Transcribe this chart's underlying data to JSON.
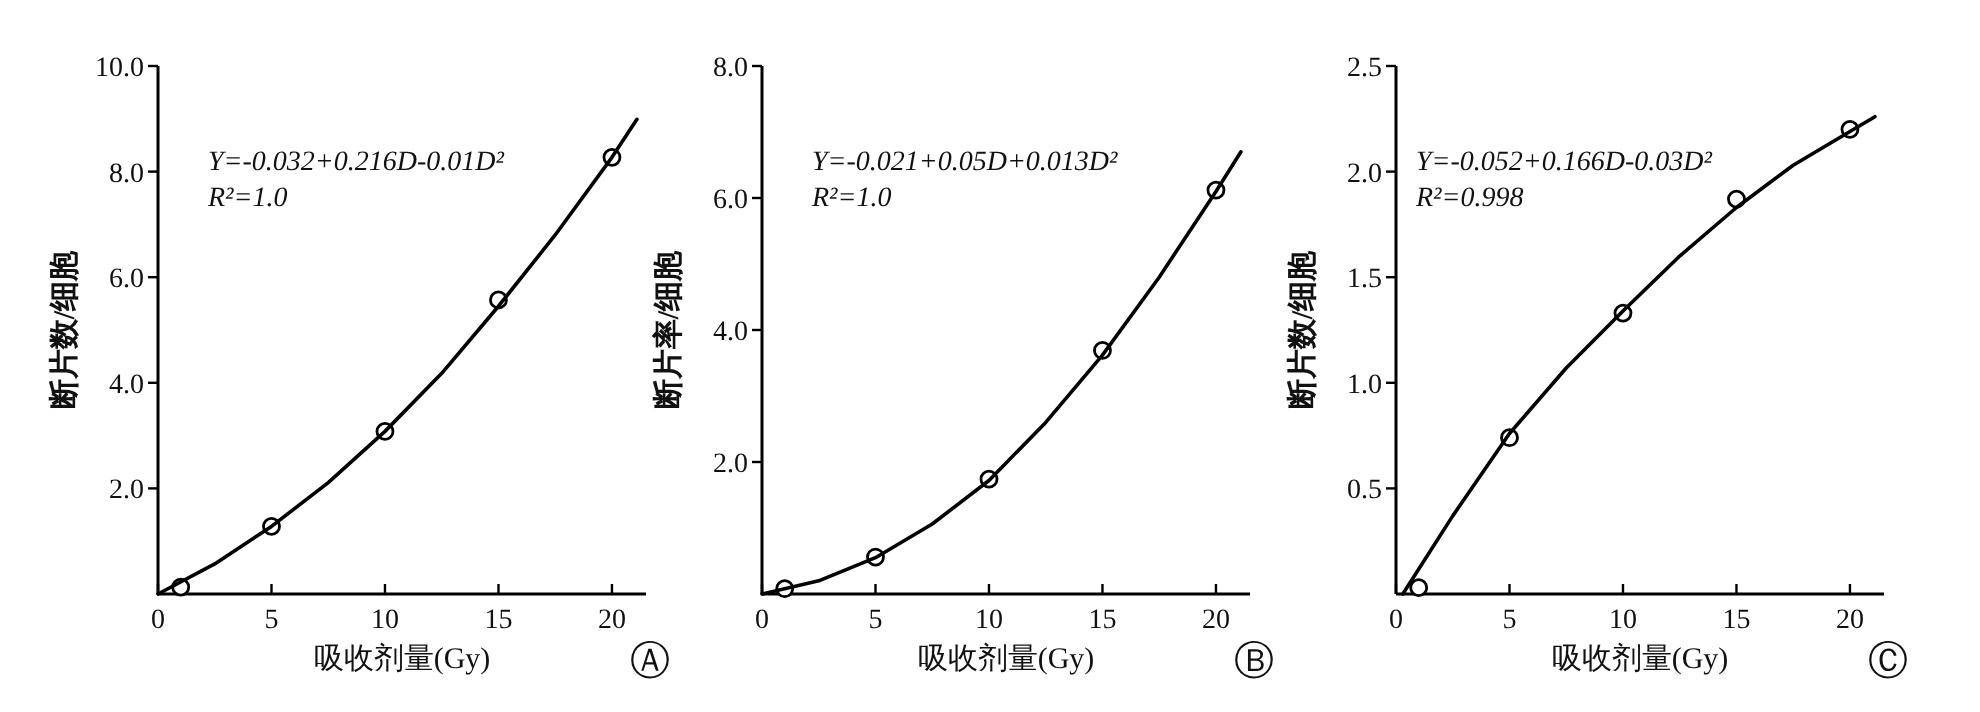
{
  "chart_data": [
    {
      "type": "line",
      "xlabel": "吸收剂量(Gy)",
      "ylabel": "断片数/细胞",
      "xlim": [
        0,
        21.5
      ],
      "xticks": [
        0,
        5,
        10,
        15,
        20
      ],
      "ylim": [
        0,
        10
      ],
      "yticks": [
        {
          "value": 2,
          "label": "2.0"
        },
        {
          "value": 4,
          "label": "4.0"
        },
        {
          "value": 6,
          "label": "6.0"
        },
        {
          "value": 8,
          "label": "8.0"
        },
        {
          "value": 10,
          "label": "10.0"
        }
      ],
      "annotations": [
        "Y=-0.032+0.216D-0.01D²",
        "R²=1.0",
        "Ⓐ"
      ],
      "series": [
        {
          "type": "scatter",
          "marker": "circle",
          "color": "#000000",
          "x": [
            1,
            5,
            10,
            15,
            20
          ],
          "values": [
            0.13,
            1.28,
            3.08,
            5.57,
            8.27
          ]
        },
        {
          "color": "#000000",
          "x": [
            0,
            2.5,
            5,
            7.5,
            10,
            12.5,
            15,
            17.5,
            20,
            21.1
          ],
          "values": [
            0,
            0.57,
            1.28,
            2.11,
            3.08,
            4.18,
            5.45,
            6.8,
            8.27,
            8.99
          ]
        }
      ]
    },
    {
      "type": "line",
      "xlabel": "吸收剂量(Gy)",
      "ylabel": "断片率/细胞",
      "xlim": [
        0,
        21.5
      ],
      "xticks": [
        0,
        5,
        10,
        15,
        20
      ],
      "ylim": [
        0,
        8
      ],
      "yticks": [
        {
          "value": 2,
          "label": "2.0"
        },
        {
          "value": 4,
          "label": "4.0"
        },
        {
          "value": 6,
          "label": "6.0"
        },
        {
          "value": 8,
          "label": "8.0"
        }
      ],
      "annotations": [
        "Y=-0.021+0.05D+0.013D²",
        "R²=1.0",
        "Ⓑ"
      ],
      "series": [
        {
          "type": "scatter",
          "marker": "circle",
          "color": "#000000",
          "x": [
            1,
            5,
            10,
            15,
            20
          ],
          "values": [
            0.08,
            0.56,
            1.74,
            3.69,
            6.12
          ]
        },
        {
          "color": "#000000",
          "x": [
            0,
            2.5,
            5,
            7.5,
            10,
            12.5,
            15,
            17.5,
            20,
            21.1
          ],
          "values": [
            0,
            0.2,
            0.55,
            1.06,
            1.72,
            2.6,
            3.62,
            4.8,
            6.1,
            6.7
          ]
        }
      ]
    },
    {
      "type": "line",
      "xlabel": "吸收剂量(Gy)",
      "ylabel": "断片数/细胞",
      "xlim": [
        0,
        21.5
      ],
      "xticks": [
        0,
        5,
        10,
        15,
        20
      ],
      "ylim": [
        0,
        2.5
      ],
      "yticks": [
        {
          "value": 0.5,
          "label": "0.5"
        },
        {
          "value": 1,
          "label": "1.0"
        },
        {
          "value": 1.5,
          "label": "1.5"
        },
        {
          "value": 2,
          "label": "2.0"
        },
        {
          "value": 2.5,
          "label": "2.5"
        }
      ],
      "annotations": [
        "Y=-0.052+0.166D-0.03D²",
        "R²=0.998",
        "Ⓒ"
      ],
      "series": [
        {
          "type": "scatter",
          "marker": "circle",
          "color": "#000000",
          "x": [
            1,
            5,
            10,
            15,
            20
          ],
          "values": [
            0.03,
            0.74,
            1.33,
            1.87,
            2.2
          ]
        },
        {
          "color": "#000000",
          "x": [
            0.3,
            2.5,
            5,
            7.5,
            10,
            12.5,
            15,
            17.5,
            20,
            21.1
          ],
          "values": [
            0,
            0.37,
            0.76,
            1.07,
            1.34,
            1.6,
            1.83,
            2.03,
            2.19,
            2.26
          ]
        }
      ]
    }
  ]
}
